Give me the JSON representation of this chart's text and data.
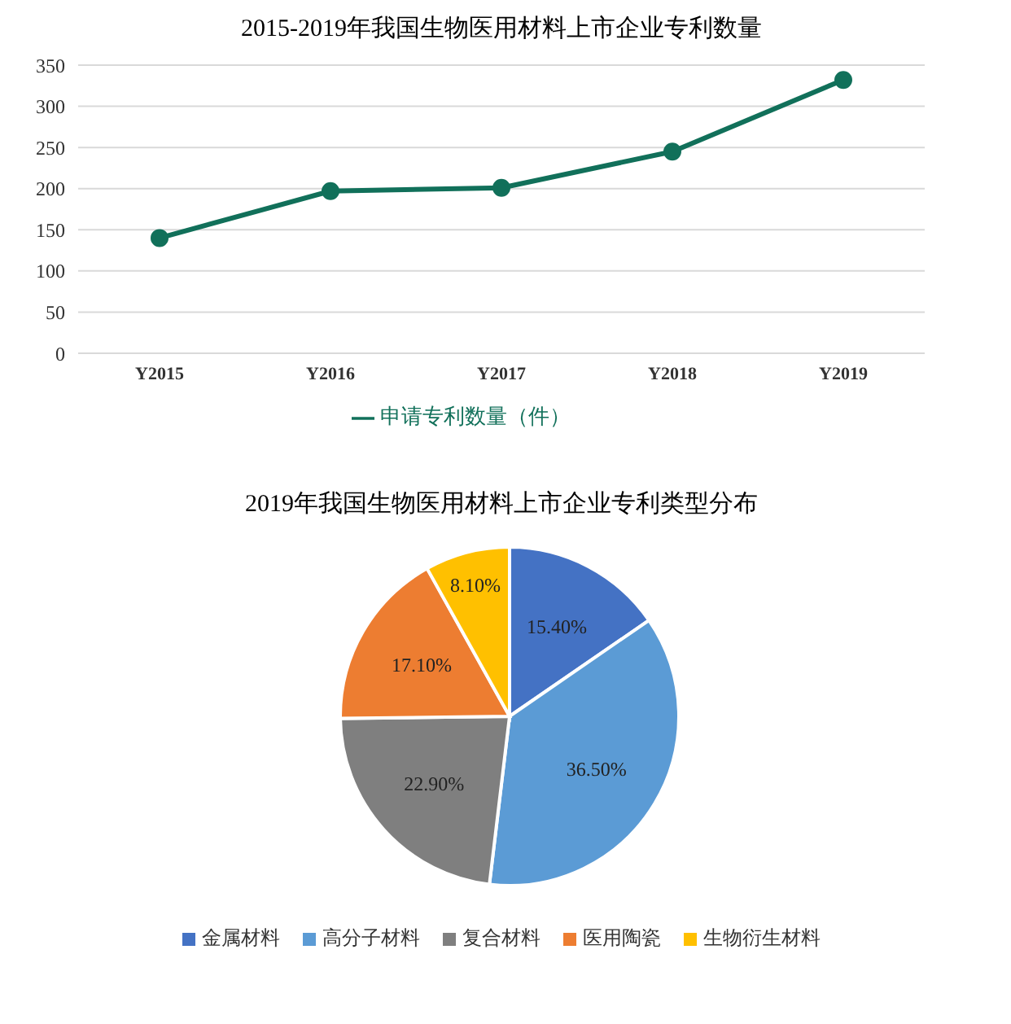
{
  "chart_data": [
    {
      "type": "line",
      "title": "2015-2019年我国生物医用材料上市企业专利数量",
      "categories": [
        "Y2015",
        "Y2016",
        "Y2017",
        "Y2018",
        "Y2019"
      ],
      "series": [
        {
          "name": "申请专利数量（件）",
          "color": "#11705a",
          "values": [
            140,
            197,
            201,
            245,
            332
          ]
        }
      ],
      "ylim": [
        0,
        350
      ],
      "yticks": [
        0,
        50,
        100,
        150,
        200,
        250,
        300,
        350
      ],
      "grid": "y",
      "legend": "bottom",
      "marker": "circle"
    },
    {
      "type": "pie",
      "title": "2019年我国生物医用材料上市企业专利类型分布",
      "categories": [
        "金属材料",
        "高分子材料",
        "复合材料",
        "医用陶瓷",
        "生物衍生材料"
      ],
      "values": [
        15.4,
        36.5,
        22.9,
        17.1,
        8.1
      ],
      "colors": [
        "#4472c4",
        "#5b9bd5",
        "#7f7f7f",
        "#ed7d31",
        "#ffc000"
      ],
      "value_labels": [
        "15.40%",
        "36.50%",
        "22.90%",
        "17.10%",
        "8.10%"
      ],
      "legend": "bottom"
    }
  ]
}
